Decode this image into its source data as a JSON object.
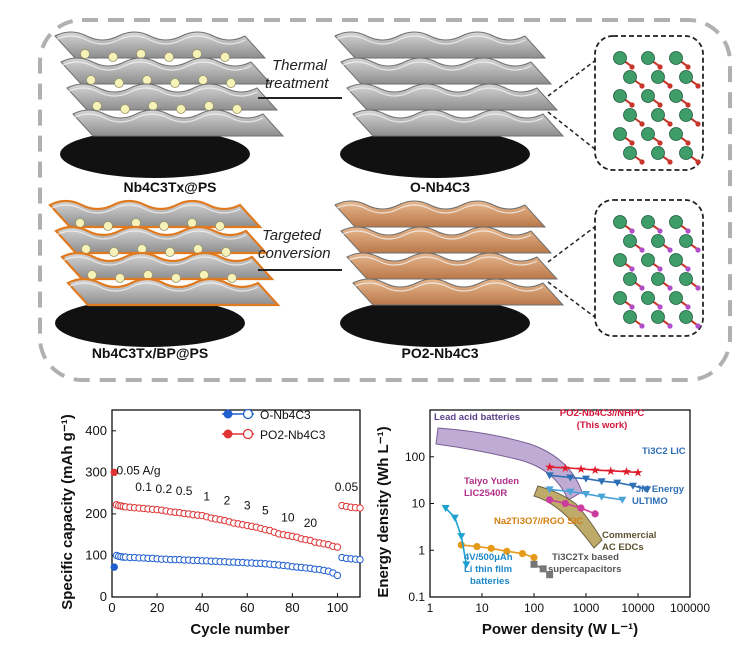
{
  "scheme": {
    "labels": {
      "top_left": "Nb4C3Tx@PS",
      "top_right": "O-Nb4C3",
      "bottom_left": "Nb4C3Tx/BP@PS",
      "bottom_right": "PO2-Nb4C3"
    },
    "arrows": {
      "top_line1": "Thermal",
      "top_line2": "treatment",
      "bottom_line1": "Targeted",
      "bottom_line2": "conversion"
    },
    "colors": {
      "sheet_gray": "#a9a9a9",
      "sheet_orange": "#d39a6a",
      "sheet_edge_orange": "#e07a20",
      "atom_green": "#3f9d6a",
      "atom_red": "#c8352a",
      "frame_border": "#b0b0b0"
    }
  },
  "chart_data": [
    {
      "type": "scatter",
      "xlabel": "Cycle number",
      "ylabel": "Specific capacity (mAh g⁻¹)",
      "xlim": [
        0,
        110
      ],
      "ylim": [
        0,
        450
      ],
      "xticks": [
        0,
        20,
        40,
        60,
        80,
        100
      ],
      "yticks": [
        0,
        100,
        200,
        300,
        400
      ],
      "legend_position": "top-right",
      "series": [
        {
          "name": "O-Nb4C3",
          "color": "#1f5fd0",
          "x": [
            1,
            2,
            3,
            4,
            5,
            6,
            8,
            10,
            12,
            14,
            16,
            18,
            20,
            22,
            24,
            26,
            28,
            30,
            32,
            34,
            36,
            38,
            40,
            42,
            44,
            46,
            48,
            50,
            52,
            54,
            56,
            58,
            60,
            62,
            64,
            66,
            68,
            70,
            72,
            74,
            76,
            78,
            80,
            82,
            84,
            86,
            88,
            90,
            92,
            94,
            96,
            98,
            100,
            102,
            104,
            106,
            108,
            110
          ],
          "y": [
            72,
            100,
            98,
            97,
            96,
            96,
            95,
            95,
            94,
            94,
            93,
            93,
            92,
            91,
            91,
            90,
            90,
            90,
            89,
            89,
            88,
            88,
            87,
            87,
            86,
            86,
            85,
            85,
            84,
            84,
            83,
            83,
            82,
            82,
            81,
            81,
            80,
            79,
            78,
            77,
            76,
            75,
            73,
            72,
            71,
            70,
            69,
            67,
            66,
            64,
            62,
            58,
            52,
            95,
            93,
            92,
            91,
            90
          ]
        },
        {
          "name": "PO2-Nb4C3",
          "color": "#e03535",
          "x": [
            1,
            2,
            3,
            4,
            5,
            6,
            8,
            10,
            12,
            14,
            16,
            18,
            20,
            22,
            24,
            26,
            28,
            30,
            32,
            34,
            36,
            38,
            40,
            42,
            44,
            46,
            48,
            50,
            52,
            54,
            56,
            58,
            60,
            62,
            64,
            66,
            68,
            70,
            72,
            74,
            76,
            78,
            80,
            82,
            84,
            86,
            88,
            90,
            92,
            94,
            96,
            98,
            100,
            102,
            104,
            106,
            108,
            110
          ],
          "y": [
            300,
            222,
            220,
            219,
            218,
            217,
            216,
            215,
            214,
            213,
            212,
            211,
            210,
            209,
            207,
            205,
            204,
            203,
            201,
            200,
            198,
            197,
            196,
            193,
            190,
            188,
            186,
            184,
            181,
            178,
            176,
            174,
            172,
            170,
            168,
            165,
            162,
            160,
            156,
            152,
            150,
            148,
            146,
            144,
            140,
            138,
            136,
            132,
            130,
            128,
            126,
            122,
            120,
            220,
            218,
            216,
            215,
            214
          ]
        }
      ],
      "annotations": [
        "0.05 A/g",
        "0.1",
        "0.2",
        "0.5",
        "1",
        "2",
        "3",
        "5",
        "10",
        "20",
        "0.05"
      ]
    },
    {
      "type": "scatter",
      "xlabel": "Power density (W L⁻¹)",
      "ylabel": "Energy density (Wh L⁻¹)",
      "xscale": "log",
      "yscale": "log",
      "xlim": [
        1,
        100000
      ],
      "ylim": [
        0.1,
        1000
      ],
      "xticks": [
        "1",
        "10",
        "100",
        "1000",
        "10000",
        "100000"
      ],
      "yticks": [
        "0.1",
        "1",
        "10",
        "100"
      ],
      "series": [
        {
          "name": "PO2-Nb4C3//NHPC (This work)",
          "color": "#e01c2a",
          "x": [
            200,
            400,
            800,
            1500,
            3000,
            6000,
            10000
          ],
          "y": [
            60,
            58,
            55,
            52,
            50,
            48,
            46
          ]
        },
        {
          "name": "Ti3C2 LIC",
          "color": "#2f6fb5",
          "x": [
            200,
            500,
            1000,
            2000,
            4000,
            8000,
            15000
          ],
          "y": [
            40,
            36,
            34,
            30,
            28,
            24,
            20
          ]
        },
        {
          "name": "JM Energy ULTIMO",
          "color": "#4aa3d8",
          "x": [
            200,
            500,
            1000,
            2000,
            5000
          ],
          "y": [
            20,
            18,
            16,
            14,
            12
          ]
        },
        {
          "name": "Taiyo Yuden LIC2540R",
          "color": "#cc3b9e",
          "x": [
            200,
            400,
            800,
            1500
          ],
          "y": [
            12,
            10,
            8,
            6
          ]
        },
        {
          "name": "Na2Ti3O7//RGO SIC",
          "color": "#e69a1a",
          "x": [
            4,
            8,
            15,
            30,
            60,
            100
          ],
          "y": [
            1.3,
            1.2,
            1.1,
            0.95,
            0.85,
            0.7
          ]
        },
        {
          "name": "Ti3C2Tx based supercapacitors",
          "color": "#777777",
          "x": [
            100,
            150,
            200
          ],
          "y": [
            0.5,
            0.4,
            0.3
          ]
        },
        {
          "name": "4V/500μAh Li thin film batteries",
          "color": "#1ea0d0",
          "x": [
            2,
            3,
            4,
            5
          ],
          "y": [
            8,
            5,
            2,
            0.5
          ]
        }
      ],
      "region_labels": [
        "Lead acid batteries",
        "PO2-Nb4C3//NHPC",
        "(This work)",
        "Ti3C2 LIC",
        "JM Energy",
        "ULTIMO",
        "Taiyo Yuden",
        "LIC2540R",
        "Commercial",
        "AC EDCs",
        "Na2Ti3O7//RGO SIC",
        "4V/500μAh",
        "Li thin film",
        "batteries",
        "Ti3C2Tx based",
        "supercapacitors"
      ]
    }
  ]
}
